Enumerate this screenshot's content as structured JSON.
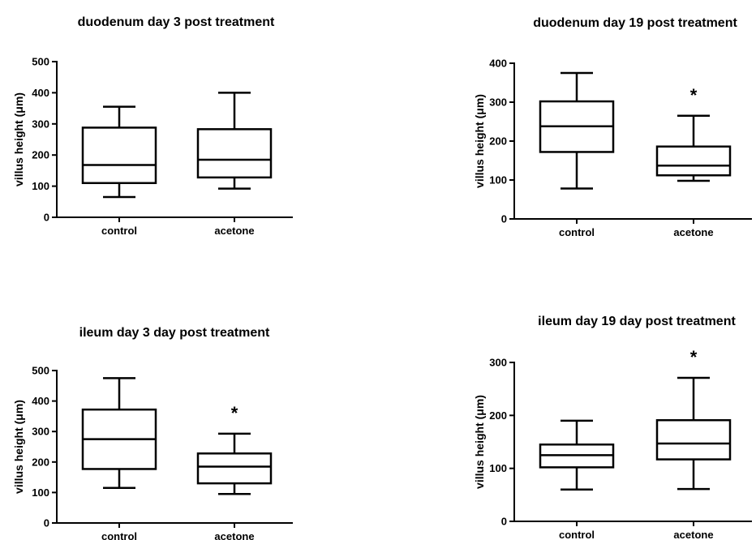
{
  "chart_data": [
    {
      "type": "box",
      "title": "duodenum day 3 post treatment",
      "ylabel": "villus height (μm)",
      "ylim": [
        0,
        500
      ],
      "yticks": [
        0,
        100,
        200,
        300,
        400,
        500
      ],
      "categories": [
        "control",
        "acetone"
      ],
      "boxes": [
        {
          "min": 65,
          "q1": 110,
          "median": 168,
          "q3": 288,
          "max": 355,
          "annotation": ""
        },
        {
          "min": 92,
          "q1": 128,
          "median": 185,
          "q3": 283,
          "max": 400,
          "annotation": ""
        }
      ]
    },
    {
      "type": "box",
      "title": "duodenum day 19 post treatment",
      "ylabel": "villus height (μm)",
      "ylim": [
        0,
        400
      ],
      "yticks": [
        0,
        100,
        200,
        300,
        400
      ],
      "categories": [
        "control",
        "acetone"
      ],
      "boxes": [
        {
          "min": 78,
          "q1": 172,
          "median": 238,
          "q3": 302,
          "max": 375,
          "annotation": ""
        },
        {
          "min": 98,
          "q1": 112,
          "median": 137,
          "q3": 186,
          "max": 265,
          "annotation": "*"
        }
      ]
    },
    {
      "type": "box",
      "title": "ileum day 3 day post treatment",
      "ylabel": "villus height (μm)",
      "ylim": [
        0,
        500
      ],
      "yticks": [
        0,
        100,
        200,
        300,
        400,
        500
      ],
      "categories": [
        "control",
        "acetone"
      ],
      "boxes": [
        {
          "min": 115,
          "q1": 177,
          "median": 275,
          "q3": 372,
          "max": 475,
          "annotation": ""
        },
        {
          "min": 95,
          "q1": 130,
          "median": 185,
          "q3": 228,
          "max": 293,
          "annotation": "*"
        }
      ]
    },
    {
      "type": "box",
      "title": "ileum day 19 day post treatment",
      "ylabel": "villus height (μm)",
      "ylim": [
        0,
        300
      ],
      "yticks": [
        0,
        100,
        200,
        300
      ],
      "categories": [
        "control",
        "acetone"
      ],
      "boxes": [
        {
          "min": 60,
          "q1": 102,
          "median": 125,
          "q3": 145,
          "max": 190,
          "annotation": ""
        },
        {
          "min": 61,
          "q1": 117,
          "median": 147,
          "q3": 191,
          "max": 271,
          "annotation": "*"
        }
      ]
    }
  ]
}
